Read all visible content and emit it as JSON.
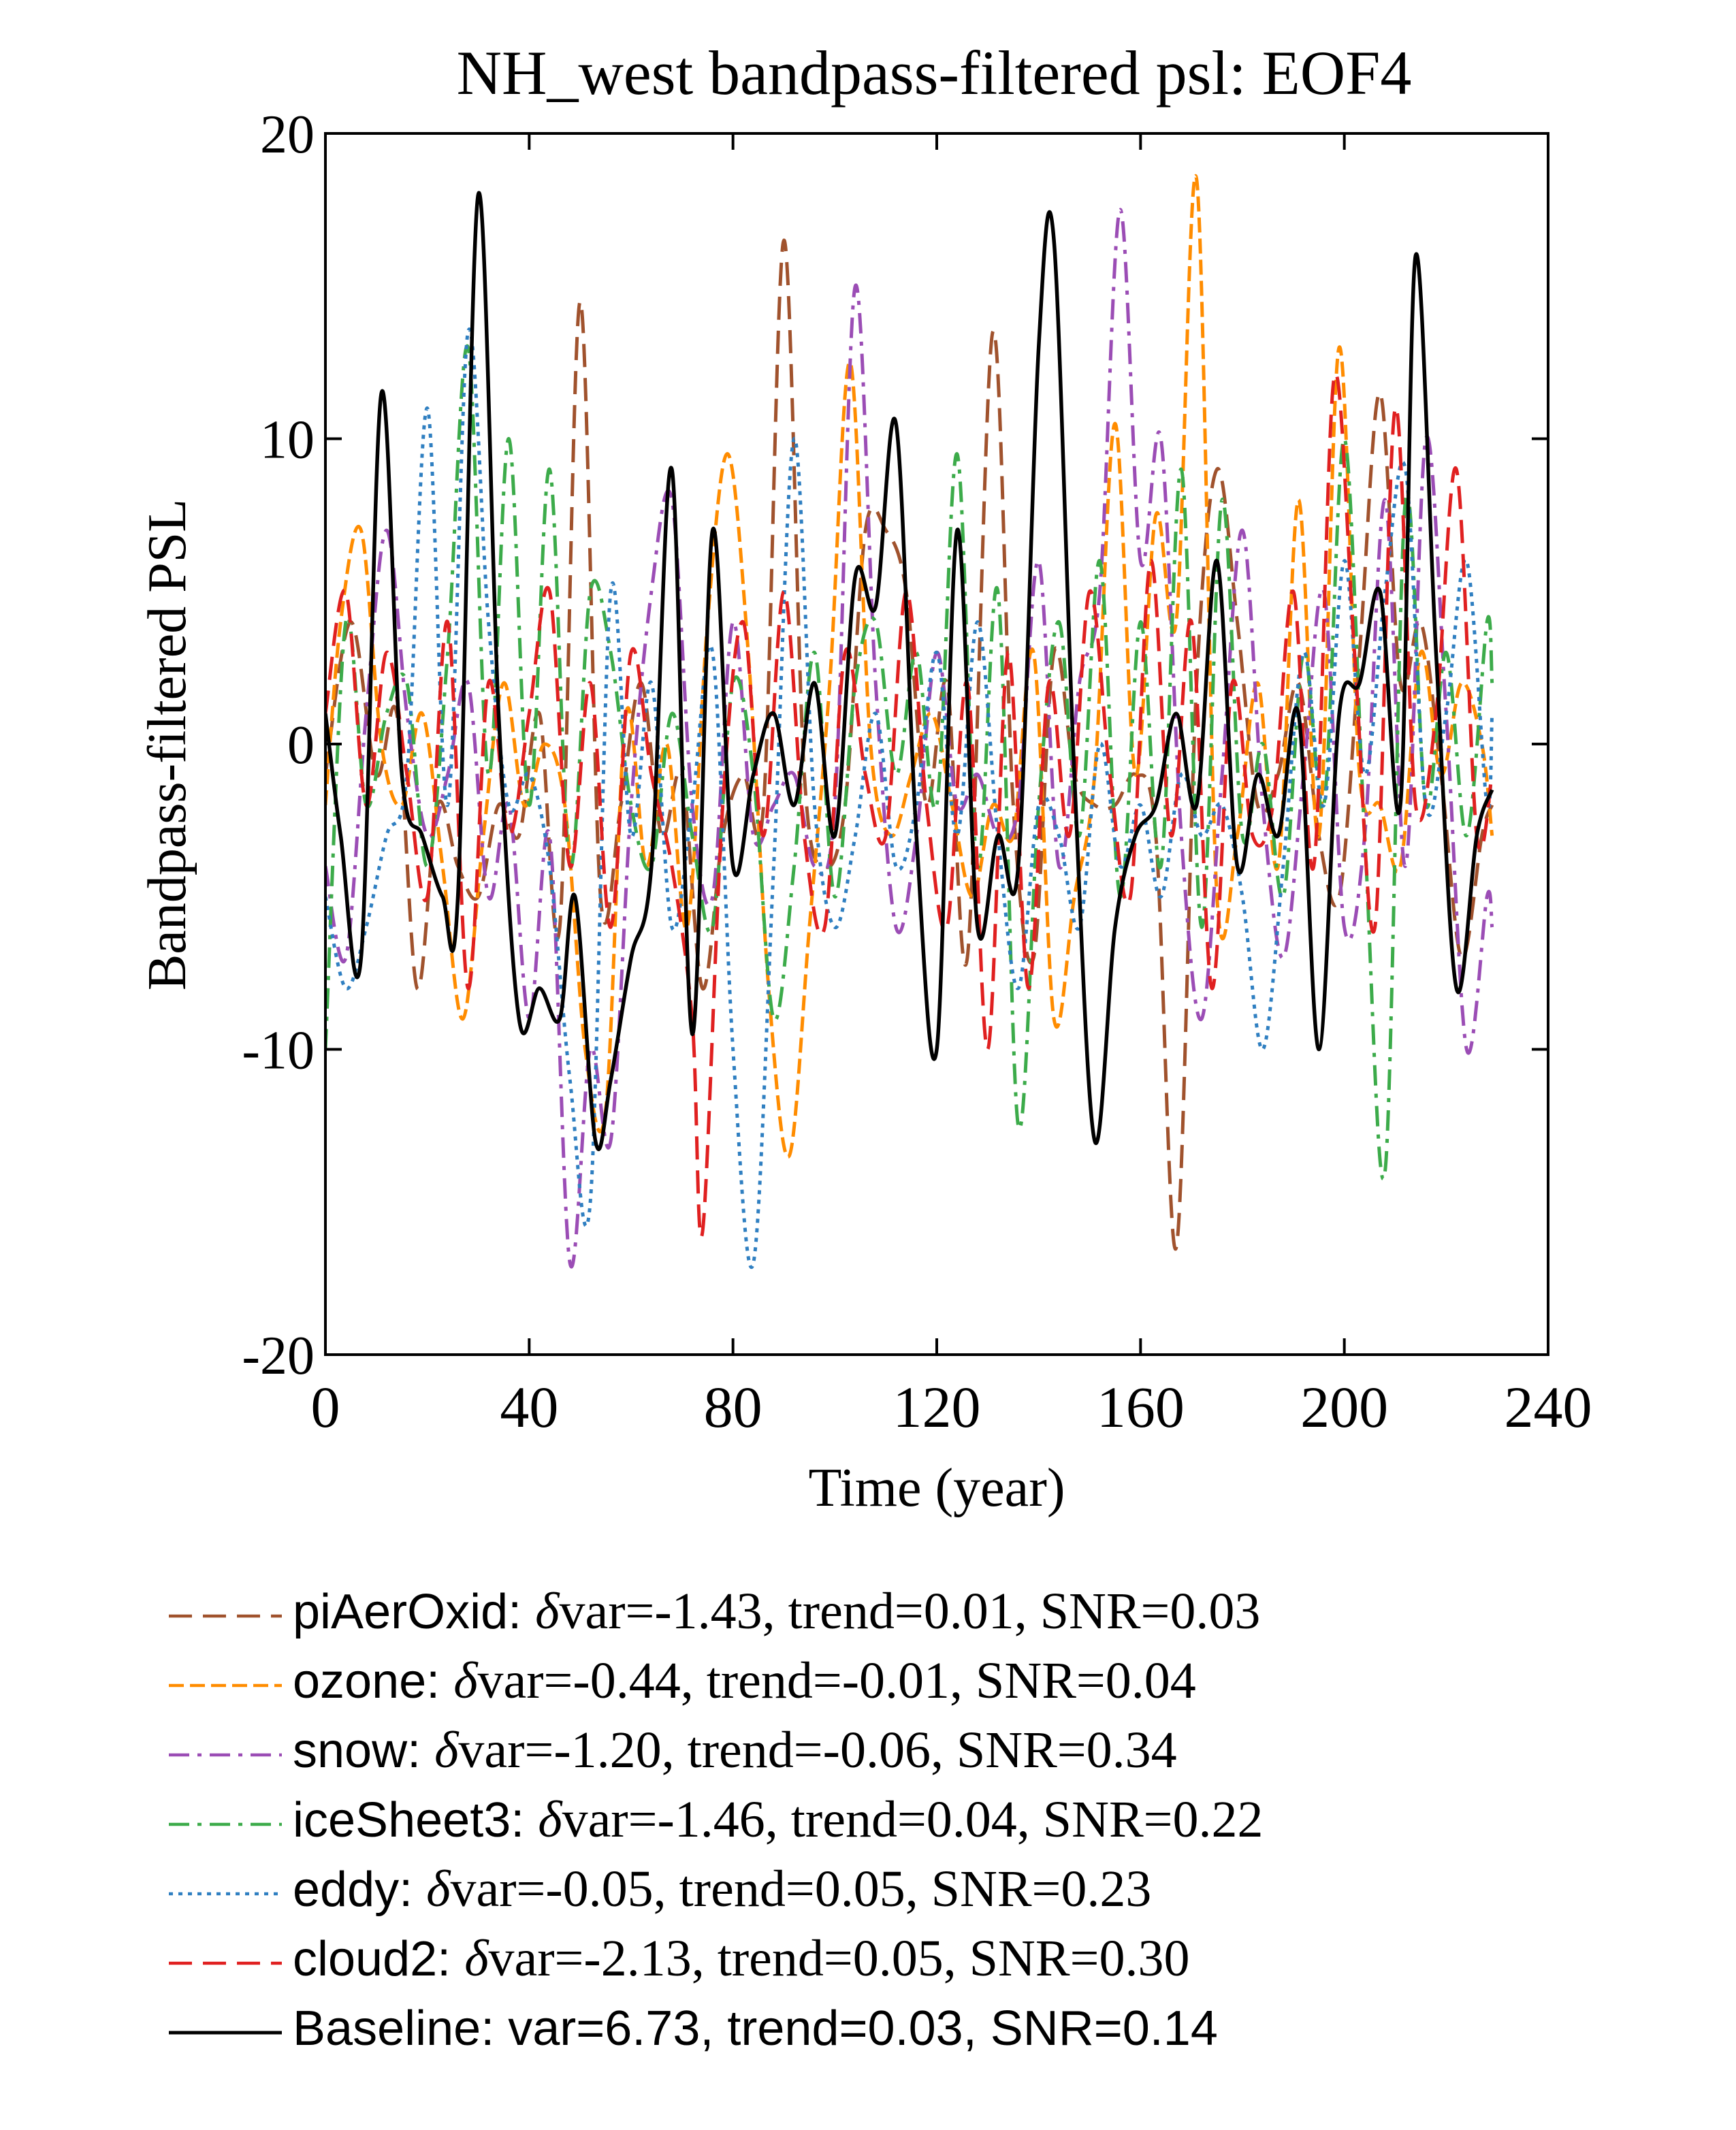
{
  "chart_data": {
    "type": "line",
    "title": "NH_west bandpass-filtered psl: EOF4",
    "xlabel": "Time (year)",
    "ylabel": "Bandpass-filtered PSL",
    "xlim": [
      0,
      240
    ],
    "ylim": [
      -20,
      20
    ],
    "xticks": [
      0,
      40,
      80,
      120,
      160,
      200,
      240
    ],
    "yticks": [
      -20,
      -10,
      0,
      10,
      20
    ],
    "xtick_labels": [
      "0",
      "40",
      "80",
      "120",
      "160",
      "200",
      "240"
    ],
    "ytick_labels": [
      "-20",
      "-10",
      "0",
      "10",
      "20"
    ],
    "grid": false,
    "legend_position": "below",
    "series": [
      {
        "name": "piAerOxid",
        "color": "#a0522d",
        "dash": "longdash",
        "label_sans": "piAerOxid: ",
        "label_math": "δ",
        "label_serif": "var=-1.43, trend=0.01, SNR=0.03",
        "x": [
          0,
          5,
          10,
          14,
          18,
          22,
          26,
          30,
          34,
          38,
          42,
          46,
          50,
          54,
          58,
          62,
          66,
          70,
          74,
          78,
          82,
          86,
          90,
          94,
          98,
          102,
          106,
          110,
          114,
          118,
          122,
          126,
          131,
          135,
          139,
          143,
          147,
          151,
          155,
          159,
          163,
          167,
          171,
          175,
          179,
          183,
          187,
          191,
          195,
          199,
          203,
          207,
          211,
          215,
          219,
          223,
          227,
          229
        ],
        "values": [
          -1,
          4,
          -1,
          1,
          -8,
          -2,
          -4,
          -5,
          -2,
          -3,
          1,
          -6,
          14.5,
          -5,
          -2,
          2,
          -3,
          -1,
          -8,
          -3,
          -1,
          -2,
          16.5,
          -1,
          -4,
          -2,
          7,
          7,
          5,
          -2,
          2,
          -7,
          13.5,
          -2,
          -7,
          3,
          -1,
          -2,
          -2,
          -1,
          -3,
          -16.5,
          2,
          9,
          4,
          -2,
          -1,
          2,
          -3,
          -5,
          3,
          11.5,
          2,
          4,
          -1,
          -7,
          -3,
          -2
        ]
      },
      {
        "name": "ozone",
        "color": "#ff8c00",
        "dash": "dash",
        "label_sans": "ozone: ",
        "label_math": "δ",
        "label_serif": "var=-0.44, trend=-0.01, SNR=0.04",
        "x": [
          0,
          3,
          7,
          11,
          15,
          19,
          23,
          27,
          31,
          35,
          39,
          43,
          47,
          51,
          55,
          59,
          63,
          67,
          71,
          75,
          79,
          83,
          87,
          91,
          95,
          99,
          103,
          107,
          111,
          115,
          119,
          123,
          127,
          131,
          135,
          139,
          143,
          147,
          151,
          155,
          159,
          163,
          167,
          171,
          175,
          179,
          183,
          187,
          191,
          195,
          199,
          203,
          207,
          211,
          215,
          219,
          223,
          227,
          229
        ],
        "values": [
          -2,
          4,
          7,
          0,
          -2,
          1,
          -4,
          -9,
          -3,
          2,
          -2,
          0,
          -2,
          -10,
          -12,
          1,
          -4,
          0,
          -6,
          4,
          9.5,
          3,
          -8,
          -13.5,
          -6,
          2,
          12.5,
          0,
          -3,
          -1,
          1,
          -2,
          -5,
          -2,
          -3,
          3,
          -9,
          -5,
          -1,
          10.5,
          -1,
          7.5,
          4,
          18.5,
          -5,
          -3,
          2,
          -4,
          8,
          -3,
          13,
          -1,
          -2,
          -4,
          3,
          -1,
          2,
          0,
          -3
        ]
      },
      {
        "name": "snow",
        "color": "#9b4db5",
        "dash": "dashdot",
        "label_sans": "snow: ",
        "label_math": "δ",
        "label_serif": "var=-1.20, trend=-0.06, SNR=0.34",
        "x": [
          0,
          4,
          8,
          12,
          16,
          20,
          24,
          28,
          32,
          36,
          40,
          44,
          48,
          52,
          56,
          60,
          64,
          68,
          72,
          76,
          80,
          84,
          88,
          92,
          96,
          100,
          104,
          108,
          112,
          116,
          120,
          124,
          128,
          132,
          136,
          140,
          144,
          148,
          152,
          156,
          160,
          164,
          168,
          172,
          176,
          180,
          184,
          188,
          192,
          196,
          200,
          204,
          208,
          212,
          216,
          220,
          224,
          228,
          229
        ],
        "values": [
          -4,
          -7,
          1,
          7,
          1,
          -3,
          -1,
          2,
          -5,
          -2,
          -9,
          -3,
          -17,
          -10,
          -13,
          -2,
          5,
          8,
          -2,
          -5,
          4,
          -3,
          -2,
          -1,
          -4,
          -2,
          15,
          2,
          -6,
          -3,
          3,
          -2,
          -1,
          -3,
          -2,
          6,
          -4,
          2,
          5,
          17.5,
          6,
          10,
          -3,
          -9,
          -1,
          7,
          -2,
          -7,
          -1,
          5,
          -6,
          -3,
          8,
          -4,
          10,
          1,
          -10,
          -5,
          -6
        ]
      },
      {
        "name": "iceSheet3",
        "color": "#3cab4a",
        "dash": "dashdot",
        "label_sans": "iceSheet3: ",
        "label_math": "δ",
        "label_serif": "var=-1.46, trend=0.04, SNR=0.22",
        "x": [
          0,
          4,
          8,
          12,
          16,
          20,
          24,
          28,
          32,
          36,
          40,
          44,
          48,
          52,
          56,
          60,
          64,
          68,
          72,
          76,
          80,
          84,
          88,
          92,
          96,
          100,
          104,
          108,
          112,
          116,
          120,
          124,
          128,
          132,
          136,
          140,
          144,
          148,
          152,
          156,
          160,
          164,
          168,
          172,
          176,
          180,
          184,
          188,
          192,
          196,
          200,
          204,
          208,
          212,
          216,
          220,
          224,
          228,
          229
        ],
        "values": [
          -10,
          4,
          -2,
          1,
          2,
          -4,
          3,
          13,
          -1,
          10,
          -2,
          9,
          -4,
          5,
          3,
          -2,
          -4,
          1,
          -3,
          -6,
          2,
          -1,
          -9,
          -4,
          3,
          -5,
          2,
          4,
          -1,
          3,
          -2,
          9.5,
          -4,
          5,
          -12.5,
          -2,
          4,
          -3,
          6,
          -5,
          4,
          -4,
          9,
          -6,
          8,
          -3,
          0,
          -5,
          3,
          -2,
          10,
          -3,
          -14,
          8,
          -2,
          3,
          -3,
          4,
          2
        ]
      },
      {
        "name": "eddy",
        "color": "#2f7fc1",
        "dash": "dot",
        "label_sans": "eddy: ",
        "label_math": "δ",
        "label_serif": "var=-0.05, trend=0.05, SNR=0.23",
        "x": [
          0,
          4,
          8,
          12,
          16,
          20,
          24,
          28,
          32,
          36,
          40,
          44,
          48,
          52,
          56,
          60,
          64,
          68,
          72,
          76,
          80,
          84,
          88,
          92,
          96,
          100,
          104,
          108,
          112,
          116,
          120,
          124,
          128,
          132,
          136,
          140,
          144,
          148,
          152,
          156,
          160,
          164,
          168,
          172,
          176,
          180,
          184,
          188,
          192,
          196,
          200,
          204,
          208,
          212,
          216,
          220,
          224,
          228,
          229
        ],
        "values": [
          -5,
          -8,
          -6,
          -3,
          -1,
          11,
          -2,
          13.5,
          4,
          -2,
          -1,
          -4,
          -11,
          -15,
          5,
          -3,
          2,
          -6,
          -2,
          3,
          -10,
          -17,
          -4,
          10,
          -2,
          -6,
          -3,
          1,
          -4,
          -2,
          3,
          -3,
          4,
          -3,
          -8,
          -2,
          -3,
          -6,
          0,
          -4,
          -2,
          -5,
          -1,
          -3,
          -2,
          -5,
          -10,
          -4,
          3,
          -2,
          6,
          -1,
          5,
          9,
          -2,
          1,
          6,
          -2,
          1
        ]
      },
      {
        "name": "cloud2",
        "color": "#e02020",
        "dash": "longdash",
        "label_sans": "cloud2: ",
        "label_math": "δ",
        "label_serif": "var=-2.13, trend=0.05, SNR=0.30",
        "x": [
          0,
          4,
          8,
          12,
          16,
          20,
          24,
          28,
          32,
          36,
          40,
          44,
          48,
          52,
          56,
          60,
          64,
          68,
          72,
          74,
          78,
          82,
          86,
          90,
          94,
          98,
          102,
          106,
          110,
          114,
          118,
          122,
          126,
          130,
          134,
          138,
          142,
          146,
          150,
          154,
          158,
          162,
          166,
          170,
          174,
          178,
          182,
          186,
          190,
          194,
          198,
          202,
          206,
          210,
          214,
          218,
          222,
          226,
          229
        ],
        "values": [
          1,
          5,
          -2,
          3,
          -1,
          -5,
          4,
          -8,
          2,
          -3,
          1,
          5,
          -4,
          2,
          -6,
          3,
          -1,
          -4,
          -9,
          -16,
          -2,
          4,
          -3,
          5,
          -3,
          -6,
          3,
          -1,
          -3,
          5,
          -2,
          -6,
          2,
          -10,
          3,
          -8,
          2,
          -3,
          5,
          -1,
          -5,
          6,
          -3,
          4,
          -8,
          2,
          -3,
          -2,
          5,
          -4,
          12,
          3,
          -6,
          11,
          -2,
          1,
          9,
          -3,
          -1
        ]
      },
      {
        "name": "Baseline",
        "color": "#000000",
        "dash": "solid",
        "label_sans": "Baseline: var=6.73, trend=0.03, SNR=0.14",
        "label_math": "",
        "label_serif": "",
        "x": [
          0,
          3,
          7,
          11,
          15,
          19,
          23,
          26,
          30,
          34,
          38,
          42,
          46,
          49,
          53,
          56,
          60,
          64,
          68,
          72,
          76,
          80,
          84,
          88,
          92,
          96,
          100,
          104,
          108,
          112,
          116,
          120,
          124,
          128,
          132,
          136,
          140,
          143,
          147,
          151,
          155,
          159,
          163,
          167,
          171,
          175,
          179,
          183,
          187,
          191,
          195,
          199,
          203,
          207,
          211,
          214,
          218,
          222,
          226,
          229
        ],
        "values": [
          1,
          -3,
          -7,
          11.5,
          -1,
          -3,
          -5,
          -5,
          18,
          1,
          -9,
          -8,
          -9,
          -5,
          -13,
          -11,
          -7,
          -4,
          9,
          -9.5,
          7,
          -4,
          -1,
          1,
          -2,
          2,
          -3,
          5.5,
          4.5,
          10.5,
          -3,
          -10,
          7,
          -6,
          -3,
          -4,
          13,
          16.5,
          -1,
          -13,
          -6,
          -3,
          -2,
          1,
          -2,
          6,
          -4,
          -1,
          -3,
          1,
          -10,
          1,
          2,
          5,
          -2,
          16,
          3,
          -8,
          -3,
          -1.5
        ]
      }
    ]
  }
}
